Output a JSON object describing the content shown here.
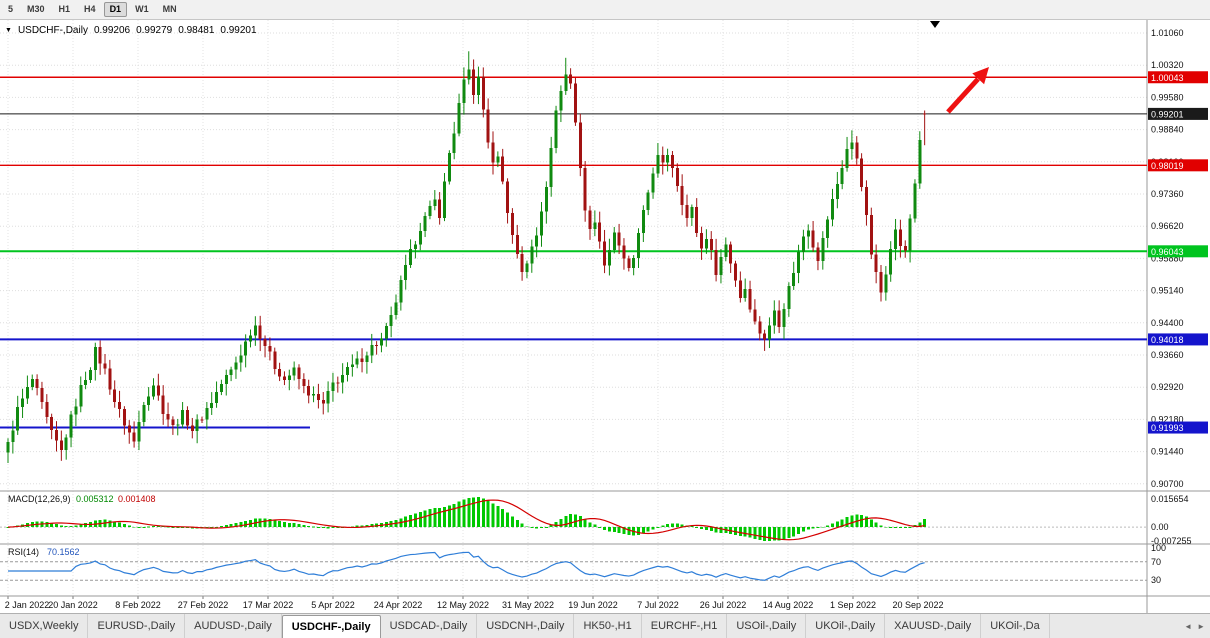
{
  "toolbar": {
    "timeframes": [
      "5",
      "M30",
      "H1",
      "H4",
      "D1",
      "W1",
      "MN"
    ],
    "active_timeframe": "D1"
  },
  "header": {
    "dropdown_icon": "▼",
    "symbol": "USDCHF-,Daily",
    "open": "0.99206",
    "high": "0.99279",
    "low": "0.98481",
    "close": "0.99201"
  },
  "price_axis": {
    "ticks": [
      "1.01060",
      "1.00320",
      "0.99580",
      "0.98840",
      "0.98100",
      "0.97360",
      "0.96620",
      "0.95880",
      "0.95140",
      "0.94400",
      "0.93660",
      "0.92920",
      "0.92180",
      "0.91440",
      "0.90700"
    ]
  },
  "levels": [
    {
      "value": 1.00043,
      "label": "1.00043",
      "color": "#e10000",
      "width": 1.4,
      "type": "full",
      "name": "resistance-line-1.00043"
    },
    {
      "value": 0.99201,
      "label": "0.99201",
      "color": "#1a1a1a",
      "width": 1.0,
      "type": "full",
      "name": "current-price-line"
    },
    {
      "value": 0.98019,
      "label": "0.98019",
      "color": "#e10000",
      "width": 1.4,
      "type": "full",
      "name": "resistance-line-0.98019"
    },
    {
      "value": 0.96043,
      "label": "0.96043",
      "color": "#00c41f",
      "width": 2.0,
      "type": "full",
      "name": "support-line-0.96043"
    },
    {
      "value": 0.94018,
      "label": "0.94018",
      "color": "#1414cc",
      "width": 2.0,
      "type": "full",
      "name": "support-line-0.94018"
    },
    {
      "value": 0.91993,
      "label": "0.91993",
      "color": "#1414cc",
      "width": 2.0,
      "type": "segment",
      "x_end": 310,
      "name": "support-line-0.91993"
    }
  ],
  "x_axis": {
    "dates": [
      "2 Jan 2022",
      "20 Jan 2022",
      "8 Feb 2022",
      "27 Feb 2022",
      "17 Mar 2022",
      "5 Apr 2022",
      "24 Apr 2022",
      "12 May 2022",
      "31 May 2022",
      "19 Jun 2022",
      "7 Jul 2022",
      "26 Jul 2022",
      "14 Aug 2022",
      "1 Sep 2022",
      "20 Sep 2022"
    ]
  },
  "macd": {
    "label": "MACD(12,26,9)",
    "value_main": "0.005312",
    "value_signal": "0.001408",
    "scale": [
      "0.015654",
      "0.00",
      "-0.007255"
    ],
    "scale_values": [
      0.015654,
      0.0,
      -0.007255
    ],
    "histogram_color": "#00c800",
    "signal_color": "#d40000"
  },
  "rsi": {
    "label": "RSI(14)",
    "value": "70.1562",
    "scale": [
      "100",
      "70",
      "30"
    ],
    "levels": [
      100,
      70,
      30
    ],
    "line_color": "#2f7ed8"
  },
  "annotations": {
    "trend_arrow_color": "#ee1111",
    "shift_marker_icon": "▼"
  },
  "tabbar": {
    "tabs": [
      "USDX,Weekly",
      "EURUSD-,Daily",
      "AUDUSD-,Daily",
      "USDCHF-,Daily",
      "USDCAD-,Daily",
      "USDCNH-,Daily",
      "HK50-,H1",
      "EURCHF-,H1",
      "USOil-,Daily",
      "UKOil-,Daily",
      "XAUUSD-,Daily",
      "UKOil-,Da"
    ],
    "active_index": 3,
    "scroll_left_icon": "◄",
    "scroll_right_icon": "►"
  },
  "chart_data": {
    "type": "candlestick",
    "symbol": "USDCHF",
    "timeframe": "Daily",
    "bars": 190,
    "up_color": "#108a10",
    "down_color": "#a11212",
    "y_range": [
      0.907,
      1.0106
    ],
    "last_bar": {
      "open": 0.99206,
      "high": 0.99279,
      "low": 0.98481,
      "close": 0.99201
    },
    "high_overrides": [
      [
        95,
        1.0064
      ],
      [
        115,
        1.0049
      ]
    ],
    "close_waypoints": [
      [
        0,
        0.916
      ],
      [
        2,
        0.924
      ],
      [
        5,
        0.931
      ],
      [
        7,
        0.925
      ],
      [
        9,
        0.9185
      ],
      [
        11,
        0.9145
      ],
      [
        13,
        0.922
      ],
      [
        15,
        0.929
      ],
      [
        17,
        0.934
      ],
      [
        18,
        0.9375
      ],
      [
        20,
        0.933
      ],
      [
        22,
        0.926
      ],
      [
        24,
        0.921
      ],
      [
        26,
        0.9165
      ],
      [
        28,
        0.926
      ],
      [
        30,
        0.93
      ],
      [
        32,
        0.924
      ],
      [
        34,
        0.92
      ],
      [
        36,
        0.923
      ],
      [
        38,
        0.9195
      ],
      [
        40,
        0.9225
      ],
      [
        42,
        0.926
      ],
      [
        44,
        0.93
      ],
      [
        46,
        0.933
      ],
      [
        48,
        0.937
      ],
      [
        50,
        0.942
      ],
      [
        51,
        0.9435
      ],
      [
        53,
        0.939
      ],
      [
        55,
        0.934
      ],
      [
        57,
        0.931
      ],
      [
        59,
        0.933
      ],
      [
        61,
        0.929
      ],
      [
        63,
        0.927
      ],
      [
        65,
        0.925
      ],
      [
        67,
        0.93
      ],
      [
        69,
        0.932
      ],
      [
        71,
        0.934
      ],
      [
        73,
        0.936
      ],
      [
        75,
        0.9385
      ],
      [
        77,
        0.94
      ],
      [
        79,
        0.945
      ],
      [
        81,
        0.953
      ],
      [
        83,
        0.96
      ],
      [
        85,
        0.966
      ],
      [
        87,
        0.97
      ],
      [
        88,
        0.972
      ],
      [
        89,
        0.969
      ],
      [
        90,
        0.976
      ],
      [
        91,
        0.983
      ],
      [
        92,
        0.988
      ],
      [
        93,
        0.994
      ],
      [
        94,
        0.999
      ],
      [
        95,
        1.002
      ],
      [
        96,
        0.997
      ],
      [
        97,
        1.0
      ],
      [
        98,
        0.993
      ],
      [
        99,
        0.986
      ],
      [
        100,
        0.98
      ],
      [
        101,
        0.983
      ],
      [
        102,
        0.976
      ],
      [
        103,
        0.97
      ],
      [
        104,
        0.964
      ],
      [
        105,
        0.96
      ],
      [
        106,
        0.956
      ],
      [
        107,
        0.958
      ],
      [
        108,
        0.961
      ],
      [
        109,
        0.964
      ],
      [
        110,
        0.97
      ],
      [
        111,
        0.976
      ],
      [
        112,
        0.985
      ],
      [
        113,
        0.992
      ],
      [
        114,
        0.998
      ],
      [
        115,
        1.001
      ],
      [
        116,
        0.999
      ],
      [
        117,
        0.99
      ],
      [
        118,
        0.98
      ],
      [
        119,
        0.97
      ],
      [
        120,
        0.965
      ],
      [
        121,
        0.968
      ],
      [
        122,
        0.962
      ],
      [
        123,
        0.958
      ],
      [
        124,
        0.961
      ],
      [
        125,
        0.965
      ],
      [
        126,
        0.962
      ],
      [
        127,
        0.958
      ],
      [
        128,
        0.956
      ],
      [
        129,
        0.959
      ],
      [
        130,
        0.964
      ],
      [
        131,
        0.969
      ],
      [
        132,
        0.974
      ],
      [
        133,
        0.979
      ],
      [
        134,
        0.982
      ],
      [
        135,
        0.98
      ],
      [
        136,
        0.983
      ],
      [
        137,
        0.98
      ],
      [
        138,
        0.976
      ],
      [
        139,
        0.972
      ],
      [
        140,
        0.968
      ],
      [
        141,
        0.97
      ],
      [
        142,
        0.965
      ],
      [
        143,
        0.961
      ],
      [
        144,
        0.964
      ],
      [
        145,
        0.96
      ],
      [
        146,
        0.956
      ],
      [
        147,
        0.959
      ],
      [
        148,
        0.962
      ],
      [
        149,
        0.958
      ],
      [
        150,
        0.954
      ],
      [
        151,
        0.95
      ],
      [
        152,
        0.952
      ],
      [
        153,
        0.948
      ],
      [
        154,
        0.944
      ],
      [
        155,
        0.942
      ],
      [
        156,
        0.9405
      ],
      [
        157,
        0.943
      ],
      [
        158,
        0.947
      ],
      [
        159,
        0.944
      ],
      [
        160,
        0.948
      ],
      [
        161,
        0.952
      ],
      [
        162,
        0.956
      ],
      [
        163,
        0.96
      ],
      [
        164,
        0.964
      ],
      [
        165,
        0.966
      ],
      [
        166,
        0.962
      ],
      [
        167,
        0.959
      ],
      [
        168,
        0.963
      ],
      [
        169,
        0.968
      ],
      [
        170,
        0.972
      ],
      [
        171,
        0.976
      ],
      [
        172,
        0.98
      ],
      [
        173,
        0.984
      ],
      [
        174,
        0.985
      ],
      [
        175,
        0.982
      ],
      [
        176,
        0.976
      ],
      [
        177,
        0.968
      ],
      [
        178,
        0.96
      ],
      [
        179,
        0.955
      ],
      [
        180,
        0.951
      ],
      [
        181,
        0.956
      ],
      [
        182,
        0.962
      ],
      [
        183,
        0.965
      ],
      [
        184,
        0.962
      ],
      [
        185,
        0.96
      ],
      [
        186,
        0.968
      ],
      [
        187,
        0.976
      ],
      [
        188,
        0.986
      ],
      [
        189,
        0.99201
      ]
    ]
  }
}
